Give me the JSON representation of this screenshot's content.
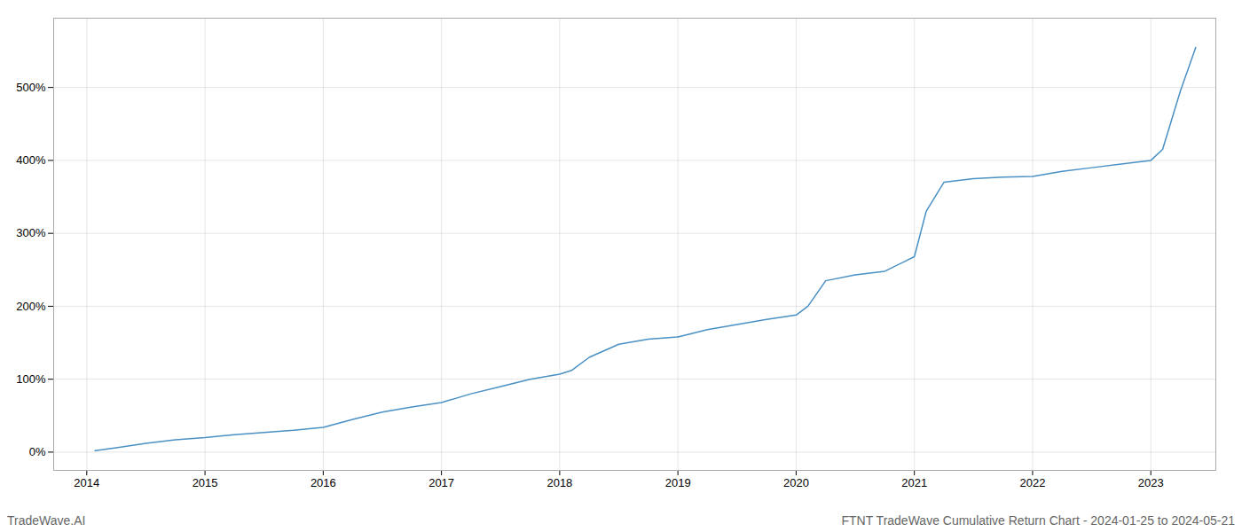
{
  "chart_data": {
    "type": "line",
    "title": "FTNT TradeWave Cumulative Return Chart - 2024-01-25 to 2024-05-21",
    "annotations": [
      "TradeWave.AI"
    ],
    "x": [
      2014.07,
      2014.25,
      2014.5,
      2014.75,
      2015.0,
      2015.25,
      2015.5,
      2015.75,
      2016.0,
      2016.25,
      2016.5,
      2016.75,
      2017.0,
      2017.25,
      2017.5,
      2017.75,
      2018.0,
      2018.1,
      2018.25,
      2018.5,
      2018.75,
      2019.0,
      2019.1,
      2019.25,
      2019.5,
      2019.75,
      2020.0,
      2020.1,
      2020.25,
      2020.5,
      2020.75,
      2021.0,
      2021.1,
      2021.25,
      2021.5,
      2021.75,
      2022.0,
      2022.25,
      2022.5,
      2022.75,
      2023.0,
      2023.1,
      2023.25,
      2023.38
    ],
    "values": [
      2,
      6,
      12,
      17,
      20,
      24,
      27,
      30,
      34,
      45,
      55,
      62,
      68,
      80,
      90,
      100,
      107,
      112,
      130,
      148,
      155,
      158,
      162,
      168,
      175,
      182,
      188,
      200,
      235,
      243,
      248,
      268,
      330,
      370,
      375,
      377,
      378,
      385,
      390,
      395,
      400,
      415,
      495,
      555
    ],
    "color": "#4a90c4",
    "xlim": [
      2013.72,
      2023.55
    ],
    "xticks": [
      2014,
      2015,
      2016,
      2017,
      2018,
      2019,
      2020,
      2021,
      2022,
      2023
    ],
    "ylim": [
      -25,
      595
    ],
    "yticks": [
      {
        "value": 0,
        "label": "0%"
      },
      {
        "value": 100,
        "label": "100%"
      },
      {
        "value": 200,
        "label": "200%"
      },
      {
        "value": 300,
        "label": "300%"
      },
      {
        "value": 400,
        "label": "400%"
      },
      {
        "value": 500,
        "label": "500%"
      }
    ],
    "grid": true
  }
}
